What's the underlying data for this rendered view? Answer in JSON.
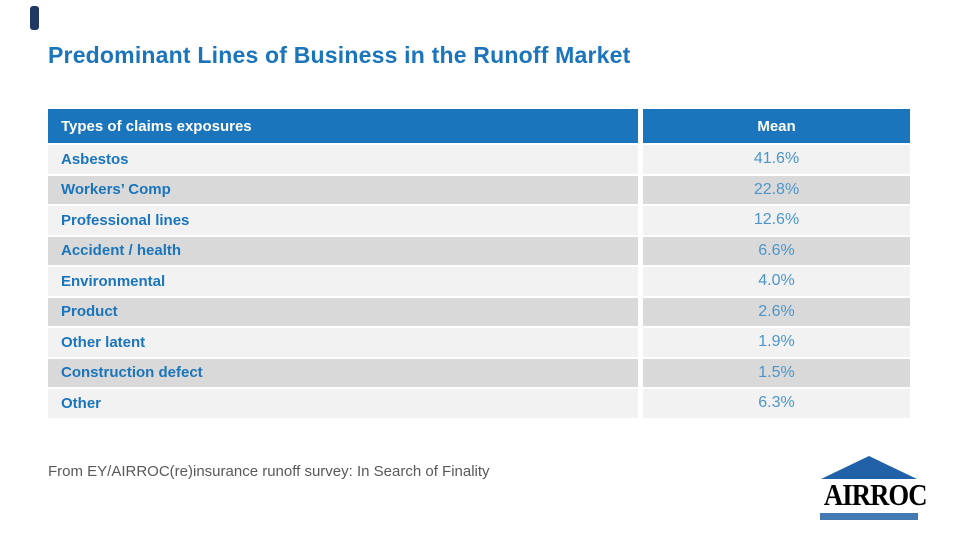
{
  "slide": {
    "title": "Predominant Lines of Business in the Runoff Market",
    "footnote": "From EY/AIRROC(re)insurance runoff survey: In Search of Finality"
  },
  "table": {
    "columns": [
      "Types of claims exposures",
      "Mean"
    ],
    "rows": [
      {
        "label": "Asbestos",
        "mean": "41.6%"
      },
      {
        "label": "Workers’ Comp",
        "mean": "22.8%"
      },
      {
        "label": "Professional lines",
        "mean": "12.6%"
      },
      {
        "label": "Accident / health",
        "mean": "6.6%"
      },
      {
        "label": "Environmental",
        "mean": "4.0%"
      },
      {
        "label": "Product",
        "mean": "2.6%"
      },
      {
        "label": "Other latent",
        "mean": "1.9%"
      },
      {
        "label": "Construction defect",
        "mean": "1.5%"
      },
      {
        "label": "Other",
        "mean": "6.3%"
      }
    ]
  },
  "logo": {
    "text": "AIRROC"
  },
  "colors": {
    "header_blue": "#1B75BC",
    "label_blue": "#1B75BC",
    "value_blue": "#4C96CB",
    "row_light": "#F2F2F2",
    "row_dark": "#D9D9D9",
    "footnote_gray": "#595959",
    "accent_navy": "#1F3864",
    "logo_roof_blue": "#2161A8",
    "logo_bar_blue": "#4579B2"
  }
}
